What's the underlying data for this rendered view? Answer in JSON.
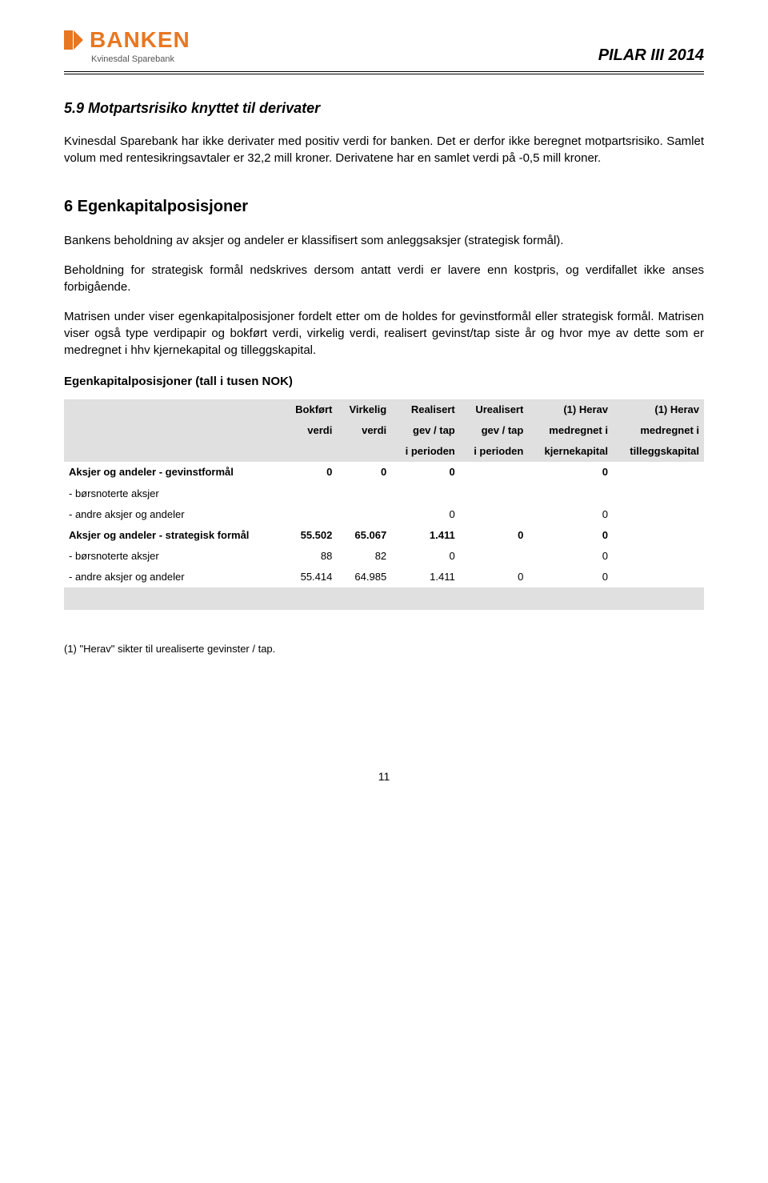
{
  "header": {
    "logo_text": "BANKEN",
    "logo_sub": "Kvinesdal Sparebank",
    "doc_title": "PILAR III 2014"
  },
  "sec59": {
    "heading": "5.9  Motpartsrisiko knyttet til derivater",
    "p1": "Kvinesdal Sparebank har ikke derivater med positiv verdi for banken. Det er derfor ikke beregnet motpartsrisiko. Samlet volum med rentesikringsavtaler er 32,2 mill kroner. Derivatene har en samlet verdi på  -0,5 mill kroner."
  },
  "sec6": {
    "heading": "6   Egenkapitalposisjoner",
    "p1": "Bankens beholdning av aksjer og andeler er klassifisert som anleggsaksjer (strategisk formål).",
    "p2": "Beholdning for strategisk formål nedskrives dersom antatt verdi er lavere enn kostpris, og verdifallet ikke anses forbigående.",
    "p3": "Matrisen under viser egenkapitalposisjoner fordelt etter om de holdes for gevinstformål eller strategisk formål. Matrisen viser også type verdipapir og bokført verdi, virkelig verdi, realisert gevinst/tap siste år og hvor mye av dette som er medregnet i hhv kjernekapital og tilleggskapital.",
    "sub": "Egenkapitalposisjoner (tall i tusen NOK)"
  },
  "table": {
    "columns": [
      "",
      "Bokført verdi",
      "Virkelig verdi",
      "Realisert gev / tap i perioden",
      "Urealisert gev / tap i perioden",
      "(1) Herav medregnet i kjernekapital",
      "(1) Herav medregnet i tilleggskapital"
    ],
    "col_line1": [
      "",
      "Bokført",
      "Virkelig",
      "Realisert",
      "Urealisert",
      "(1) Herav",
      "(1) Herav"
    ],
    "col_line2": [
      "",
      "verdi",
      "verdi",
      "gev / tap",
      "gev / tap",
      "medregnet i",
      "medregnet i"
    ],
    "col_line3": [
      "",
      "",
      "",
      "i perioden",
      "i perioden",
      "kjernekapital",
      "tilleggskapital"
    ],
    "rows": [
      {
        "bold": true,
        "cells": [
          "Aksjer og andeler - gevinstformål",
          "0",
          "0",
          "0",
          "",
          "0",
          ""
        ]
      },
      {
        "bold": false,
        "cells": [
          " - børsnoterte aksjer",
          "",
          "",
          "",
          "",
          "",
          ""
        ]
      },
      {
        "bold": false,
        "cells": [
          " - andre aksjer og andeler",
          "",
          "",
          "0",
          "",
          "0",
          ""
        ]
      },
      {
        "bold": true,
        "cells": [
          "Aksjer og andeler - strategisk formål",
          "55.502",
          "65.067",
          "1.411",
          "0",
          "0",
          ""
        ]
      },
      {
        "bold": false,
        "cells": [
          " - børsnoterte aksjer",
          "88",
          "82",
          "0",
          "",
          "0",
          ""
        ]
      },
      {
        "bold": false,
        "cells": [
          " - andre aksjer og andeler",
          "55.414",
          "64.985",
          "1.411",
          "0",
          "0",
          ""
        ]
      }
    ],
    "header_bg": "#e0e0e0",
    "font_size": 13
  },
  "footnote": "(1) \"Herav\" sikter til urealiserte gevinster / tap.",
  "page_number": "11"
}
